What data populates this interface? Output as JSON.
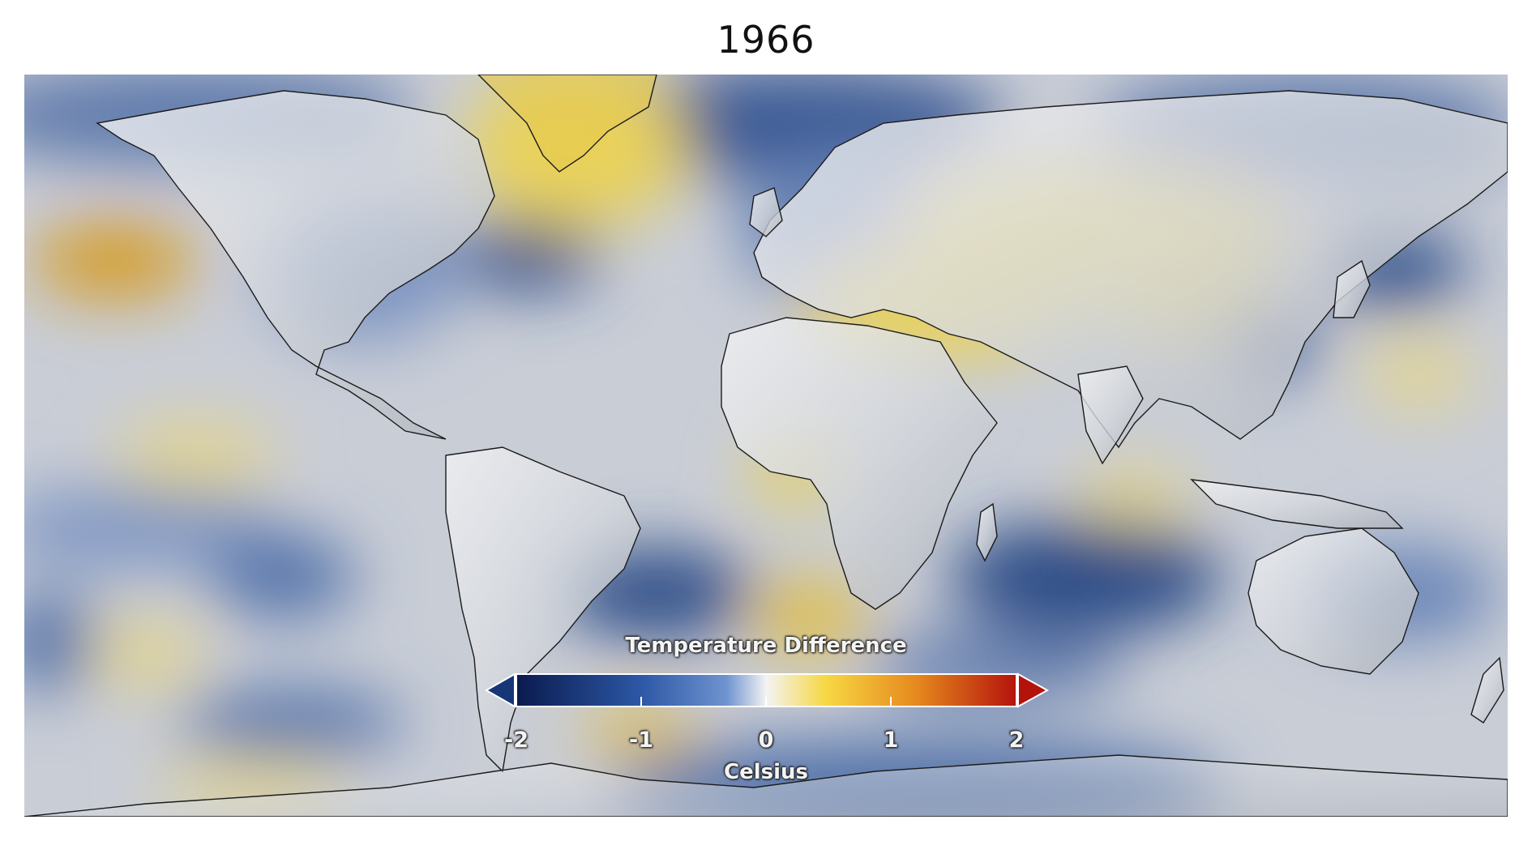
{
  "title": "1966",
  "legend": {
    "title": "Temperature Difference",
    "unit": "Celsius",
    "min": -2,
    "max": 2,
    "ticks": [
      "-2",
      "-1",
      "0",
      "1",
      "2"
    ],
    "colorscale": [
      "#0a1a4e",
      "#2d58a6",
      "#6f93cf",
      "#f3f3f3",
      "#f7d742",
      "#e6891e",
      "#b4130c"
    ],
    "extend_arrows": [
      "left",
      "right"
    ]
  },
  "map": {
    "projection": "equirectangular",
    "colors": {
      "neutral": "#c9cdd6",
      "cool": "#5b77aa",
      "deep_cool": "#2c4b86",
      "warm": "#e9d25a",
      "hot": "#d69a1f",
      "land": "#dcdfe4",
      "outline": "#1b1b1b"
    }
  }
}
